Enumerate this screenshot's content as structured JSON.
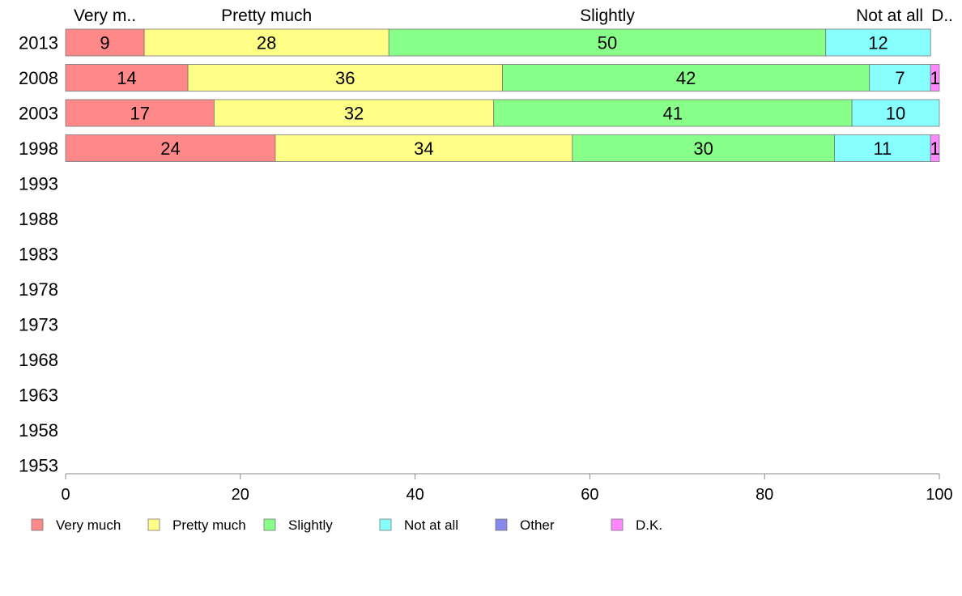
{
  "chart_data": {
    "type": "bar",
    "orientation": "horizontal",
    "stacked": true,
    "categories": [
      "2013",
      "2008",
      "2003",
      "1998",
      "1993",
      "1988",
      "1983",
      "1978",
      "1973",
      "1968",
      "1963",
      "1958",
      "1953"
    ],
    "series": [
      {
        "name": "Very much",
        "color": "#ff8888",
        "values": [
          9,
          14,
          17,
          24,
          null,
          null,
          null,
          null,
          null,
          null,
          null,
          null,
          null
        ]
      },
      {
        "name": "Pretty much",
        "color": "#ffff88",
        "values": [
          28,
          36,
          32,
          34,
          null,
          null,
          null,
          null,
          null,
          null,
          null,
          null,
          null
        ]
      },
      {
        "name": "Slightly",
        "color": "#88ff88",
        "values": [
          50,
          42,
          41,
          30,
          null,
          null,
          null,
          null,
          null,
          null,
          null,
          null,
          null
        ]
      },
      {
        "name": "Not at all",
        "color": "#88ffff",
        "values": [
          12,
          7,
          10,
          11,
          null,
          null,
          null,
          null,
          null,
          null,
          null,
          null,
          null
        ]
      },
      {
        "name": "Other",
        "color": "#8888ee",
        "values": [
          0,
          0,
          0,
          0,
          null,
          null,
          null,
          null,
          null,
          null,
          null,
          null,
          null
        ]
      },
      {
        "name": "D.K.",
        "color": "#ff88ff",
        "values": [
          0,
          1,
          0,
          1,
          null,
          null,
          null,
          null,
          null,
          null,
          null,
          null,
          null
        ]
      }
    ],
    "top_labels": [
      "Very m..",
      "Pretty much",
      "Slightly",
      "Not at all",
      "D.."
    ],
    "x_ticks": [
      0,
      20,
      40,
      60,
      80,
      100
    ],
    "xlim": [
      0,
      100
    ],
    "grid": false,
    "legend_position": "bottom"
  }
}
